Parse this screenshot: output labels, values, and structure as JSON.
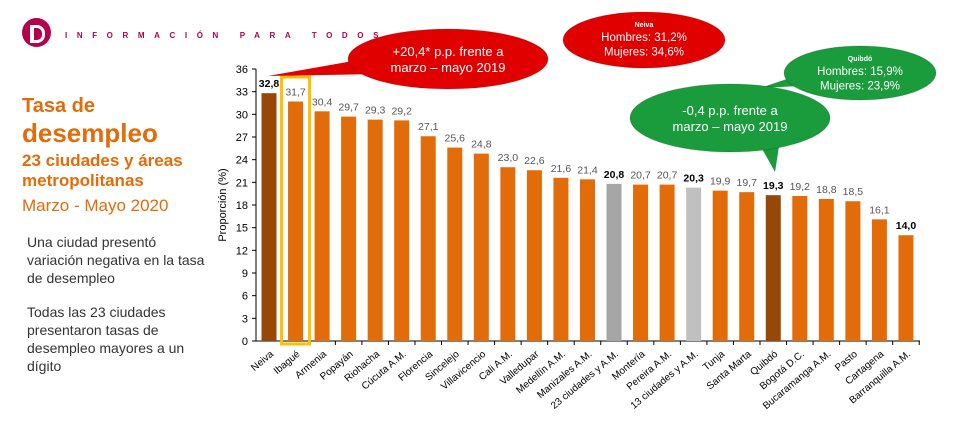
{
  "header": {
    "tagline": "INFORMACIÓN PARA TODOS"
  },
  "side": {
    "title_1": "Tasa de",
    "title_2": "desempleo",
    "subtitle": "23 ciudades y áreas metropolitanas",
    "period": "Marzo - Mayo 2020",
    "note_1": "Una ciudad presentó variación negativa en la tasa de desempleo",
    "note_2": "Todas las 23 ciudades presentaron tasas de desempleo mayores a un dígito"
  },
  "callouts": {
    "red_main": [
      "+20,4* p.p. frente a",
      "marzo – mayo 2019"
    ],
    "red_detail": {
      "title": "Neiva",
      "lines": [
        "Hombres: 31,2%",
        "Mujeres: 34,6%"
      ]
    },
    "green_main": [
      "-0,4 p.p. frente a",
      "marzo – mayo 2019"
    ],
    "green_detail": {
      "title": "Quibdó",
      "lines": [
        "Hombres: 15,9%",
        "Mujeres: 23,9%"
      ]
    }
  },
  "chart_data": {
    "type": "bar",
    "ylabel": "Proporción (%)",
    "ylim": [
      0,
      36
    ],
    "yticks": [
      0,
      3,
      6,
      9,
      12,
      15,
      18,
      21,
      24,
      27,
      30,
      33,
      36
    ],
    "categories": [
      "Neiva",
      "Ibagué",
      "Armenia",
      "Popayán",
      "Riohacha",
      "Cúcuta A.M.",
      "Florencia",
      "Sincelejo",
      "Villavicencio",
      "Cali A.M.",
      "Valledupar",
      "Medellín A.M.",
      "Manizales A.M.",
      "23 ciudades y A.M.",
      "Montería",
      "Pereira A.M.",
      "13 ciudades y A.M.",
      "Tunja",
      "Santa Marta",
      "Quibdó",
      "Bogotá  D.C.",
      "Bucaramanga A.M.",
      "Pasto",
      "Cartagena",
      "Barranquilla A.M."
    ],
    "values": [
      32.8,
      31.7,
      30.4,
      29.7,
      29.3,
      29.2,
      27.1,
      25.6,
      24.8,
      23.0,
      22.6,
      21.6,
      21.4,
      20.8,
      20.7,
      20.7,
      20.3,
      19.9,
      19.7,
      19.3,
      19.2,
      18.8,
      18.5,
      16.1,
      14.0
    ],
    "labels": [
      "32,8",
      "31,7",
      "30,4",
      "29,7",
      "29,3",
      "29,2",
      "27,1",
      "25,6",
      "24,8",
      "23,0",
      "22,6",
      "21,6",
      "21,4",
      "20,8",
      "20,7",
      "20,7",
      "20,3",
      "19,9",
      "19,7",
      "19,3",
      "19,2",
      "18,8",
      "18,5",
      "16,1",
      "14,0"
    ],
    "bold_labels": [
      0,
      13,
      16,
      19,
      24
    ],
    "highlighted": "Ibagué",
    "colors": {
      "default": "#e36c0a",
      "extreme": "#974806",
      "agg23": "#a6a6a6",
      "agg13": "#c0c0c0",
      "highlight_box": "#ffc000",
      "red": "#e00000",
      "green": "#1a9b3c"
    }
  }
}
